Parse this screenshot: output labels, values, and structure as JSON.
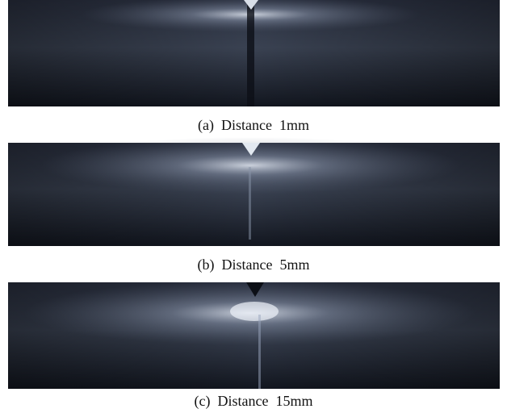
{
  "figure": {
    "panels": [
      {
        "caption": "(a)  Distance  1mm"
      },
      {
        "caption": "(b)  Distance  5mm"
      },
      {
        "caption": "(c)  Distance  15mm"
      }
    ]
  }
}
